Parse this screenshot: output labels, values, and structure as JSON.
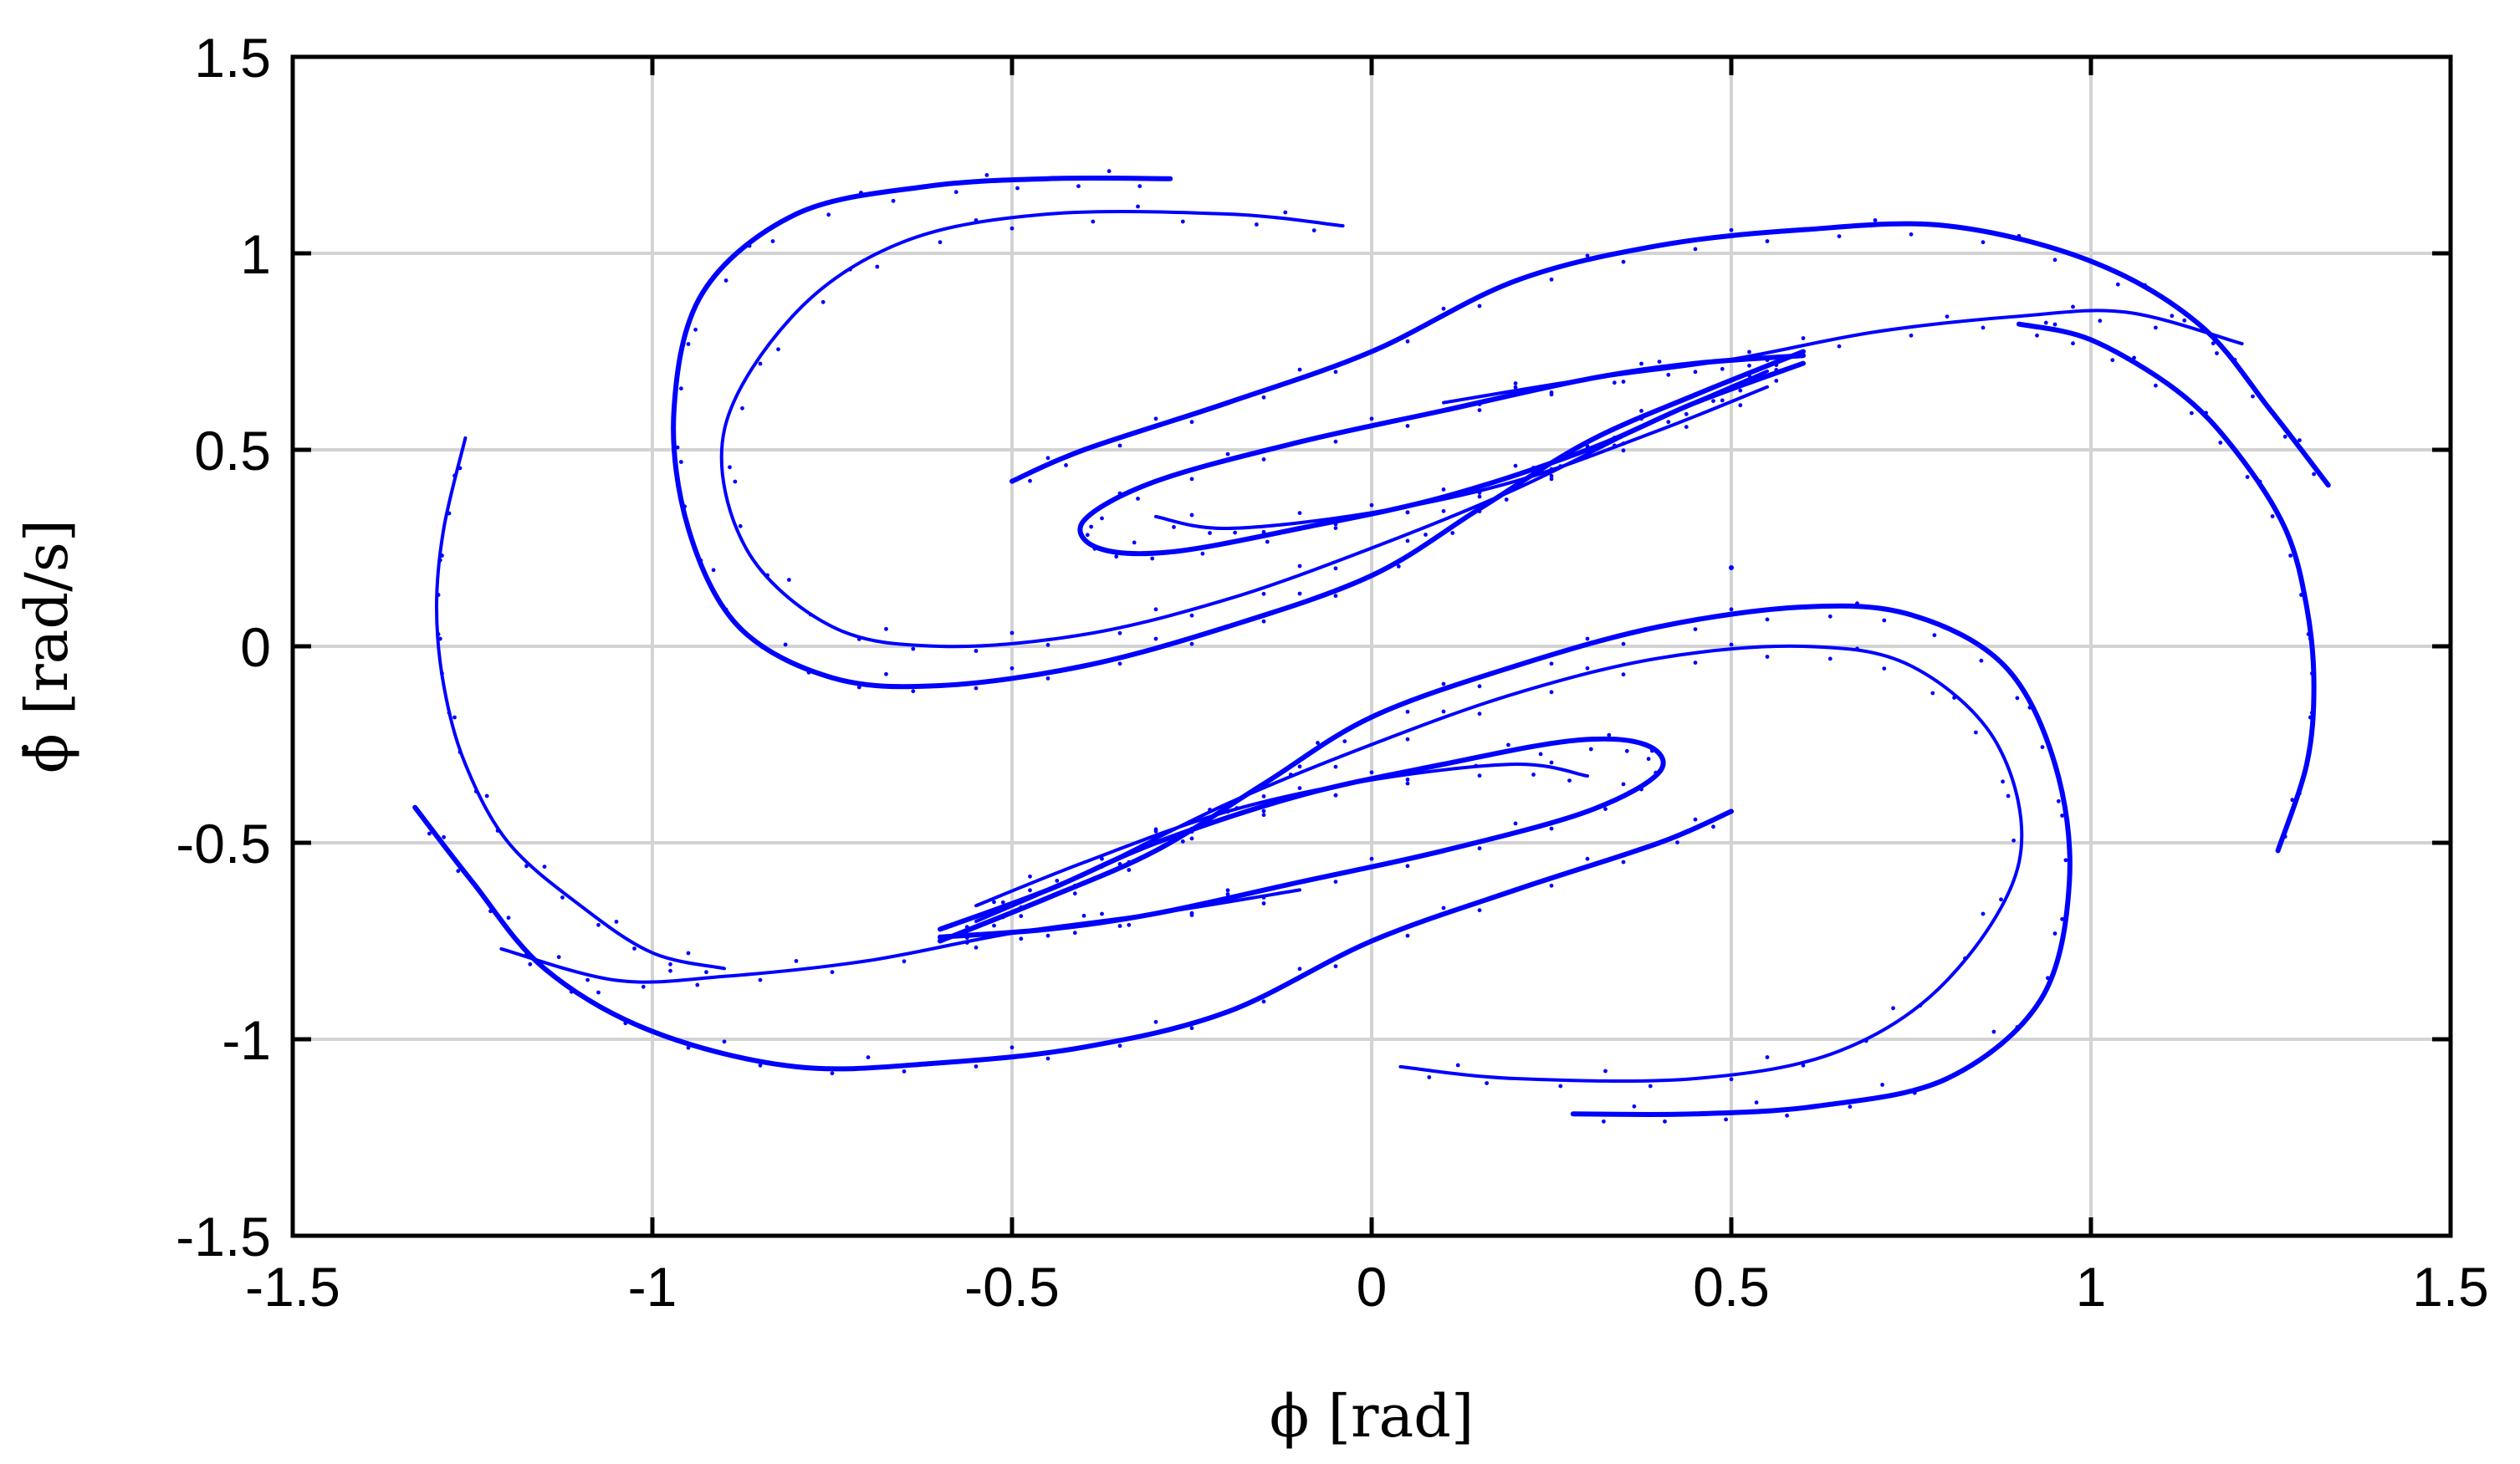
{
  "chart_data": {
    "type": "scatter",
    "title": "",
    "xlabel": "ϕ [rad]",
    "ylabel": "ϕ̇ [rad/s]",
    "xlim": [
      -1.5,
      1.5
    ],
    "ylim": [
      -1.5,
      1.5
    ],
    "xticks": [
      "-1.5",
      "-1",
      "-0.5",
      "0",
      "0.5",
      "1",
      "1.5"
    ],
    "yticks": [
      "1.5",
      "1",
      "0.5",
      "0",
      "-0.5",
      "-1",
      "-1.5"
    ],
    "xtick_values": [
      -1.5,
      -1,
      -0.5,
      0,
      0.5,
      1,
      1.5
    ],
    "ytick_values": [
      1.5,
      1,
      0.5,
      0,
      -0.5,
      -1,
      -1.5
    ],
    "grid": true,
    "legend": "none",
    "color": "#0000ff",
    "series": [
      {
        "points": [
          [
            -0.28,
            1.19
          ],
          [
            -0.45,
            1.19
          ],
          [
            -0.62,
            1.17
          ],
          [
            -0.8,
            1.1
          ],
          [
            -0.93,
            0.9
          ],
          [
            -0.97,
            0.6
          ],
          [
            -0.95,
            0.3
          ],
          [
            -0.88,
            0.05
          ],
          [
            -0.75,
            -0.08
          ],
          [
            -0.6,
            -0.1
          ],
          [
            -0.4,
            -0.05
          ],
          [
            -0.2,
            0.05
          ],
          [
            0,
            0.18
          ],
          [
            0.15,
            0.35
          ],
          [
            0.3,
            0.52
          ],
          [
            0.45,
            0.64
          ],
          [
            0.6,
            0.75
          ]
        ]
      },
      {
        "points": [
          [
            -0.04,
            1.07
          ],
          [
            -0.2,
            1.1
          ],
          [
            -0.45,
            1.1
          ],
          [
            -0.65,
            1.03
          ],
          [
            -0.8,
            0.85
          ],
          [
            -0.9,
            0.55
          ],
          [
            -0.87,
            0.25
          ],
          [
            -0.75,
            0.05
          ],
          [
            -0.6,
            0
          ],
          [
            -0.4,
            0.03
          ],
          [
            -0.2,
            0.12
          ],
          [
            0,
            0.25
          ],
          [
            0.2,
            0.4
          ],
          [
            0.4,
            0.58
          ],
          [
            0.55,
            0.7
          ]
        ]
      },
      {
        "points": [
          [
            0.6,
            0.74
          ],
          [
            0.45,
            0.72
          ],
          [
            0.3,
            0.68
          ],
          [
            0.1,
            0.6
          ],
          [
            -0.1,
            0.52
          ],
          [
            -0.3,
            0.42
          ],
          [
            -0.4,
            0.32
          ],
          [
            -0.38,
            0.25
          ],
          [
            -0.28,
            0.24
          ],
          [
            -0.1,
            0.3
          ],
          [
            0.1,
            0.38
          ],
          [
            0.3,
            0.5
          ],
          [
            0.45,
            0.62
          ],
          [
            0.6,
            0.72
          ]
        ]
      },
      {
        "points": [
          [
            -0.3,
            0.33
          ],
          [
            -0.2,
            0.3
          ],
          [
            0,
            0.34
          ],
          [
            0.2,
            0.42
          ],
          [
            0.4,
            0.55
          ],
          [
            0.55,
            0.66
          ]
        ]
      },
      {
        "points": [
          [
            1.33,
            0.41
          ],
          [
            1.25,
            0.6
          ],
          [
            1.15,
            0.82
          ],
          [
            1,
            0.98
          ],
          [
            0.8,
            1.07
          ],
          [
            0.6,
            1.06
          ],
          [
            0.4,
            1.02
          ],
          [
            0.2,
            0.93
          ],
          [
            0,
            0.75
          ],
          [
            -0.2,
            0.62
          ],
          [
            -0.4,
            0.5
          ],
          [
            -0.5,
            0.42
          ]
        ]
      },
      {
        "points": [
          [
            1.21,
            0.77
          ],
          [
            1.05,
            0.85
          ],
          [
            0.9,
            0.84
          ],
          [
            0.7,
            0.8
          ],
          [
            0.5,
            0.73
          ],
          [
            0.3,
            0.68
          ],
          [
            0.1,
            0.62
          ]
        ]
      },
      {
        "points": [
          [
            1.26,
            -0.52
          ],
          [
            1.3,
            -0.3
          ],
          [
            1.31,
            -0.1
          ],
          [
            1.3,
            0.1
          ],
          [
            1.27,
            0.3
          ],
          [
            1.2,
            0.5
          ],
          [
            1.12,
            0.65
          ],
          [
            1,
            0.78
          ],
          [
            0.9,
            0.82
          ]
        ]
      },
      {
        "points": [
          [
            -1.26,
            0.53
          ],
          [
            -1.29,
            0.3
          ],
          [
            -1.3,
            0.1
          ],
          [
            -1.29,
            -0.1
          ],
          [
            -1.26,
            -0.3
          ],
          [
            -1.2,
            -0.5
          ],
          [
            -1.1,
            -0.66
          ],
          [
            -1,
            -0.78
          ],
          [
            -0.9,
            -0.82
          ]
        ]
      },
      {
        "points": [
          [
            -1.33,
            -0.41
          ],
          [
            -1.25,
            -0.6
          ],
          [
            -1.15,
            -0.82
          ],
          [
            -1,
            -0.98
          ],
          [
            -0.8,
            -1.07
          ],
          [
            -0.6,
            -1.06
          ],
          [
            -0.4,
            -1.02
          ],
          [
            -0.2,
            -0.93
          ],
          [
            0,
            -0.75
          ],
          [
            0.2,
            -0.62
          ],
          [
            0.4,
            -0.5
          ],
          [
            0.5,
            -0.42
          ]
        ]
      },
      {
        "points": [
          [
            -1.21,
            -0.77
          ],
          [
            -1.05,
            -0.85
          ],
          [
            -0.9,
            -0.84
          ],
          [
            -0.7,
            -0.8
          ],
          [
            -0.5,
            -0.73
          ],
          [
            -0.3,
            -0.68
          ],
          [
            -0.1,
            -0.62
          ]
        ]
      },
      {
        "points": [
          [
            0.28,
            -1.19
          ],
          [
            0.45,
            -1.19
          ],
          [
            0.62,
            -1.17
          ],
          [
            0.8,
            -1.1
          ],
          [
            0.93,
            -0.9
          ],
          [
            0.97,
            -0.6
          ],
          [
            0.95,
            -0.3
          ],
          [
            0.88,
            -0.05
          ],
          [
            0.75,
            0.08
          ],
          [
            0.6,
            0.1
          ],
          [
            0.4,
            0.05
          ],
          [
            0.2,
            -0.05
          ],
          [
            0,
            -0.18
          ],
          [
            -0.15,
            -0.35
          ],
          [
            -0.3,
            -0.52
          ],
          [
            -0.45,
            -0.64
          ],
          [
            -0.6,
            -0.75
          ]
        ]
      },
      {
        "points": [
          [
            0.04,
            -1.07
          ],
          [
            0.2,
            -1.1
          ],
          [
            0.45,
            -1.1
          ],
          [
            0.65,
            -1.03
          ],
          [
            0.8,
            -0.85
          ],
          [
            0.9,
            -0.55
          ],
          [
            0.87,
            -0.25
          ],
          [
            0.75,
            -0.05
          ],
          [
            0.6,
            0
          ],
          [
            0.4,
            -0.03
          ],
          [
            0.2,
            -0.12
          ],
          [
            0,
            -0.25
          ],
          [
            -0.2,
            -0.4
          ],
          [
            -0.4,
            -0.58
          ],
          [
            -0.55,
            -0.7
          ]
        ]
      },
      {
        "points": [
          [
            -0.6,
            -0.74
          ],
          [
            -0.45,
            -0.72
          ],
          [
            -0.3,
            -0.68
          ],
          [
            -0.1,
            -0.6
          ],
          [
            0.1,
            -0.52
          ],
          [
            0.3,
            -0.42
          ],
          [
            0.4,
            -0.32
          ],
          [
            0.38,
            -0.25
          ],
          [
            0.28,
            -0.24
          ],
          [
            0.1,
            -0.3
          ],
          [
            -0.1,
            -0.38
          ],
          [
            -0.3,
            -0.5
          ],
          [
            -0.45,
            -0.62
          ],
          [
            -0.6,
            -0.72
          ]
        ]
      },
      {
        "points": [
          [
            0.3,
            -0.33
          ],
          [
            0.2,
            -0.3
          ],
          [
            0,
            -0.34
          ],
          [
            -0.2,
            -0.42
          ],
          [
            -0.4,
            -0.55
          ],
          [
            -0.55,
            -0.66
          ]
        ]
      },
      {
        "points": [
          [
            0.5,
            0.2
          ]
        ]
      }
    ]
  }
}
